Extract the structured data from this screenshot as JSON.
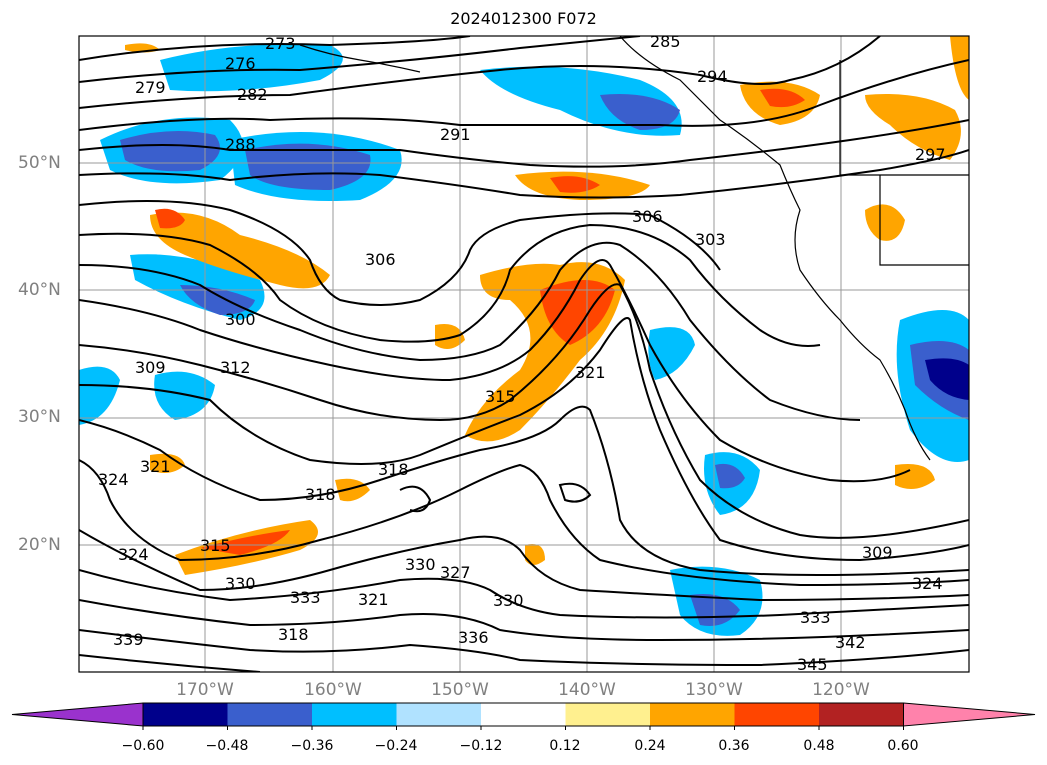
{
  "title": "2024012300 F072",
  "lat_labels": [
    "50°N",
    "40°N",
    "30°N",
    "20°N"
  ],
  "lon_labels": [
    "170°W",
    "160°W",
    "150°W",
    "140°W",
    "130°W",
    "120°W"
  ],
  "contour_labels": [
    "273",
    "276",
    "279",
    "282",
    "285",
    "288",
    "291",
    "294",
    "297",
    "300",
    "303",
    "306",
    "306",
    "309",
    "309",
    "312",
    "315",
    "315",
    "318",
    "318",
    "318",
    "321",
    "321",
    "321",
    "324",
    "324",
    "324",
    "327",
    "330",
    "330",
    "330",
    "333",
    "333",
    "336",
    "339",
    "342",
    "345"
  ],
  "colorbar": {
    "ticks": [
      "−0.60",
      "−0.48",
      "−0.36",
      "−0.24",
      "−0.12",
      "0.12",
      "0.24",
      "0.36",
      "0.48",
      "0.60"
    ],
    "colors": [
      "#9a32cd",
      "#00008b",
      "#3a5fcd",
      "#00bfff",
      "#b0e2ff",
      "#ffffff",
      "#fff08f",
      "#ffa500",
      "#ff4500",
      "#b22222",
      "#ff82ab"
    ]
  }
}
